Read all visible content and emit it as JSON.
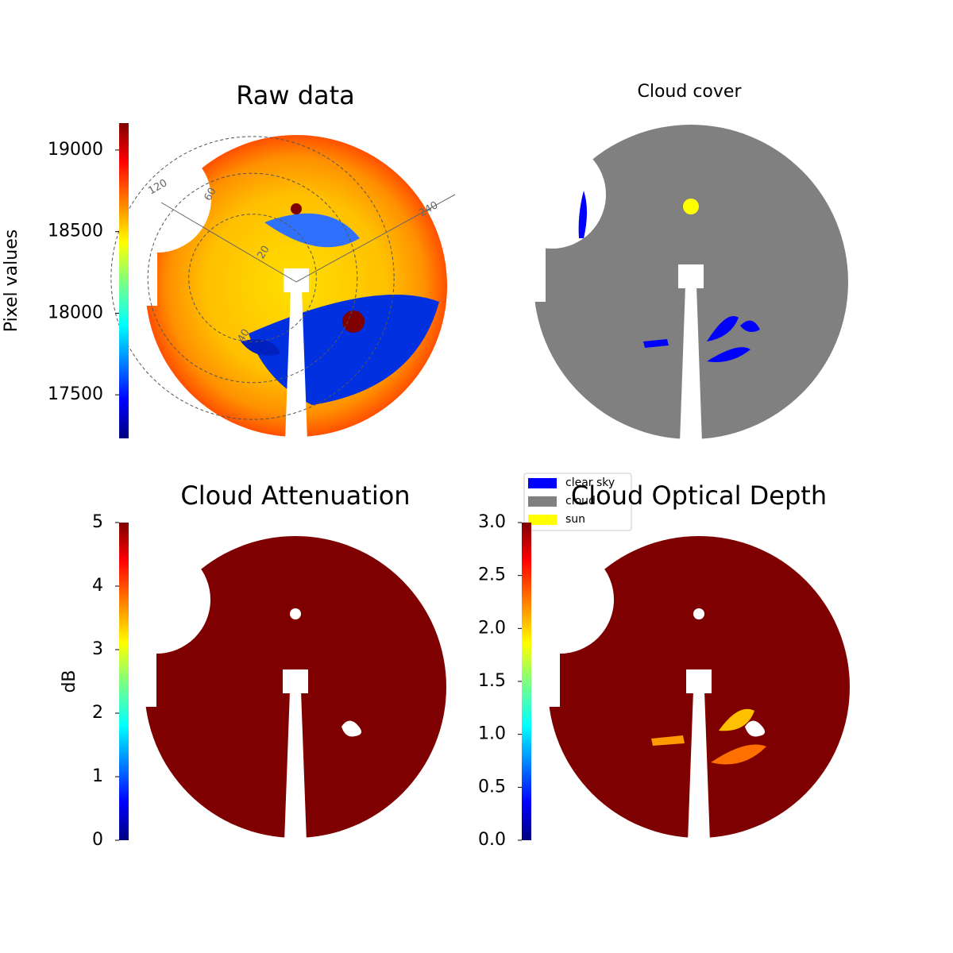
{
  "chart_data": [
    {
      "type": "image",
      "title": "Raw data",
      "ylabel": "Pixel values",
      "colormap": "jet",
      "ylim": [
        17233,
        19165
      ],
      "yticks": [
        17500,
        18000,
        18500,
        19000
      ],
      "annotations": [
        "120",
        "240",
        "20",
        "40",
        "60"
      ]
    },
    {
      "type": "image",
      "title": "Cloud cover",
      "series": [
        {
          "name": "clear sky",
          "color": "#0000ff"
        },
        {
          "name": "cloud",
          "color": "#808080"
        },
        {
          "name": "sun",
          "color": "#ffff00"
        }
      ]
    },
    {
      "type": "image",
      "title": "Cloud Attenuation",
      "ylabel": "dB",
      "colormap": "jet",
      "ylim": [
        0,
        5
      ],
      "yticks": [
        0,
        1,
        2,
        3,
        4,
        5
      ]
    },
    {
      "type": "image",
      "title": "Cloud Optical Depth",
      "colormap": "jet",
      "ylim": [
        0,
        3
      ],
      "yticks": [
        {
          "value": 0,
          "label": "0.0"
        },
        {
          "value": 0.5,
          "label": "0.5"
        },
        {
          "value": 1,
          "label": "1.0"
        },
        {
          "value": 1.5,
          "label": "1.5"
        },
        {
          "value": 2,
          "label": "2.0"
        },
        {
          "value": 2.5,
          "label": "2.5"
        },
        {
          "value": 3,
          "label": "3.0"
        }
      ]
    }
  ]
}
